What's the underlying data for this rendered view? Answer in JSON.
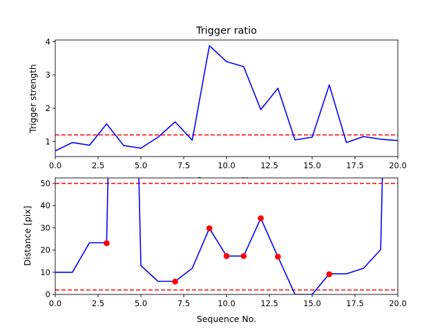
{
  "chart_data": [
    {
      "type": "line",
      "title": "Trigger ratio",
      "xlabel": "Sequence No.",
      "ylabel": "Trigger strength",
      "xlim": [
        0,
        20
      ],
      "ylim": [
        0.55,
        4.05
      ],
      "xticks": [
        0,
        2.5,
        5,
        7.5,
        10,
        12.5,
        15,
        17.5,
        20
      ],
      "xtick_labels": [
        "0.0",
        "2.5",
        "5.0",
        "7.5",
        "10.0",
        "12.5",
        "15.0",
        "17.5",
        "20.0"
      ],
      "yticks": [
        1,
        2,
        3,
        4
      ],
      "ytick_labels": [
        "1",
        "2",
        "3",
        "4"
      ],
      "series": [
        {
          "color": "#0000ff",
          "style": "solid",
          "x": [
            0,
            1,
            2,
            3,
            4,
            5,
            6,
            7,
            8,
            9,
            10,
            11,
            12,
            13,
            14,
            15,
            16,
            17,
            18,
            19,
            20
          ],
          "y": [
            0.72,
            0.97,
            0.89,
            1.53,
            0.88,
            0.8,
            1.13,
            1.59,
            1.04,
            3.88,
            3.4,
            3.25,
            1.96,
            2.6,
            1.05,
            1.13,
            2.7,
            0.97,
            1.15,
            1.07,
            1.03
          ]
        }
      ],
      "hlines": [
        {
          "y": 1.2,
          "color": "#ff0000",
          "style": "dashed"
        }
      ]
    },
    {
      "type": "line",
      "title": "",
      "xlabel": "Sequence No.",
      "ylabel": "Distance [pix]",
      "xlim": [
        0,
        20
      ],
      "ylim": [
        0,
        52.5
      ],
      "xticks": [
        0,
        2.5,
        5,
        7.5,
        10,
        12.5,
        15,
        17.5,
        20
      ],
      "xtick_labels": [
        "0.0",
        "2.5",
        "5.0",
        "7.5",
        "10.0",
        "12.5",
        "15.0",
        "17.5",
        "20.0"
      ],
      "yticks": [
        0,
        10,
        20,
        30,
        40,
        50
      ],
      "ytick_labels": [
        "0",
        "10",
        "20",
        "30",
        "40",
        "50"
      ],
      "series": [
        {
          "color": "#0000ff",
          "style": "solid",
          "x": [
            0,
            1,
            2,
            3,
            3.08,
            4.88,
            5,
            6,
            7,
            8,
            9,
            10,
            11,
            12,
            13,
            14,
            15,
            16,
            17,
            18,
            19,
            19.1
          ],
          "y": [
            10,
            10,
            23.3,
            23.3,
            53,
            53,
            13,
            5.9,
            5.9,
            11.8,
            29.8,
            17.3,
            17.3,
            34.3,
            17,
            0,
            0,
            9.3,
            9.3,
            11.8,
            20.2,
            53
          ]
        }
      ],
      "markers": {
        "color": "#ff0000",
        "x": [
          3,
          7,
          9,
          10,
          11,
          12,
          13,
          16
        ],
        "y": [
          23.1,
          5.8,
          29.8,
          17.3,
          17.3,
          34.3,
          17,
          9.1
        ]
      },
      "hlines": [
        {
          "y": 50,
          "color": "#ff0000",
          "style": "dashed"
        },
        {
          "y": 2,
          "color": "#ff0000",
          "style": "dashed"
        }
      ]
    }
  ]
}
